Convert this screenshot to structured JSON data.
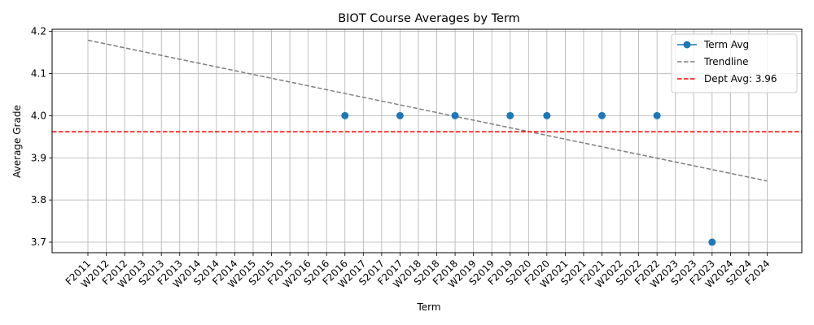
{
  "chart_data": {
    "type": "line",
    "title": "BIOT Course Averages by Term",
    "xlabel": "Term",
    "ylabel": "Average Grade",
    "categories": [
      "F2011",
      "W2012",
      "F2012",
      "W2013",
      "S2013",
      "F2013",
      "W2014",
      "S2014",
      "F2014",
      "W2015",
      "S2015",
      "F2015",
      "W2016",
      "S2016",
      "F2016",
      "W2017",
      "S2017",
      "F2017",
      "W2018",
      "S2018",
      "F2018",
      "W2019",
      "S2019",
      "F2019",
      "S2020",
      "F2020",
      "W2021",
      "S2021",
      "F2021",
      "W2022",
      "S2022",
      "F2022",
      "W2023",
      "S2023",
      "F2023",
      "W2024",
      "S2024",
      "F2024"
    ],
    "ylim": [
      3.675,
      4.205
    ],
    "yticks": [
      3.7,
      3.8,
      3.9,
      4.0,
      4.1,
      4.2
    ],
    "ytick_labels": [
      "3.7",
      "3.8",
      "3.9",
      "4.0",
      "4.1",
      "4.2"
    ],
    "grid": true,
    "legend_position": "top-right",
    "series": [
      {
        "name": "Term Avg",
        "style": "markers",
        "color": "#1f77b4",
        "points": [
          {
            "x": "F2016",
            "y": 4.0
          },
          {
            "x": "F2017",
            "y": 4.0
          },
          {
            "x": "F2018",
            "y": 4.0
          },
          {
            "x": "F2019",
            "y": 4.0
          },
          {
            "x": "F2020",
            "y": 4.0
          },
          {
            "x": "F2021",
            "y": 4.0
          },
          {
            "x": "F2022",
            "y": 4.0
          },
          {
            "x": "F2023",
            "y": 3.7
          }
        ]
      },
      {
        "name": "Trendline",
        "style": "dashed-line",
        "color": "#808080",
        "points": [
          {
            "x": "F2011",
            "y": 4.179
          },
          {
            "x": "F2024",
            "y": 3.845
          }
        ]
      },
      {
        "name": "Dept Avg: 3.96",
        "style": "dashed-hline",
        "color": "#ff0000",
        "y": 3.962
      }
    ]
  }
}
